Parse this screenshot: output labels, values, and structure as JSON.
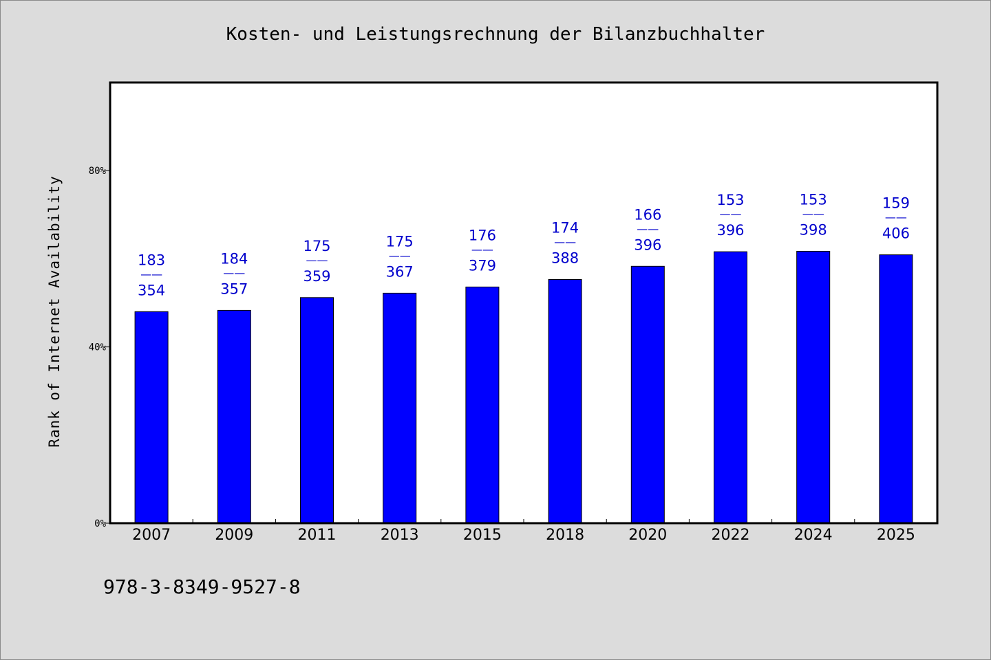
{
  "chart_data": {
    "type": "bar",
    "title": "Kosten- und Leistungsrechnung der Bilanzbuchhalter",
    "xlabel": "",
    "ylabel": "Rank of Internet Availability",
    "ylim": [
      0,
      100
    ],
    "y_ticks": [
      {
        "value": 0,
        "label": "0%"
      },
      {
        "value": 40,
        "label": "40%"
      },
      {
        "value": 80,
        "label": "80%"
      }
    ],
    "grid": false,
    "categories": [
      "2007",
      "2009",
      "2011",
      "2013",
      "2015",
      "2018",
      "2020",
      "2022",
      "2024",
      "2025"
    ],
    "values": [
      48.0,
      48.3,
      51.2,
      52.2,
      53.6,
      55.3,
      58.3,
      61.6,
      61.7,
      60.9
    ],
    "annotations": [
      {
        "top": "183",
        "sep": "——",
        "bottom": "354"
      },
      {
        "top": "184",
        "sep": "——",
        "bottom": "357"
      },
      {
        "top": "175",
        "sep": "——",
        "bottom": "359"
      },
      {
        "top": "175",
        "sep": "——",
        "bottom": "367"
      },
      {
        "top": "176",
        "sep": "——",
        "bottom": "379"
      },
      {
        "top": "174",
        "sep": "——",
        "bottom": "388"
      },
      {
        "top": "166",
        "sep": "——",
        "bottom": "396"
      },
      {
        "top": "153",
        "sep": "——",
        "bottom": "396"
      },
      {
        "top": "153",
        "sep": "——",
        "bottom": "398"
      },
      {
        "top": "159",
        "sep": "——",
        "bottom": "406"
      }
    ],
    "bar_color": "#0000ff",
    "label_color": "#0000cc"
  },
  "footer": {
    "isbn": "978-3-8349-9527-8"
  }
}
